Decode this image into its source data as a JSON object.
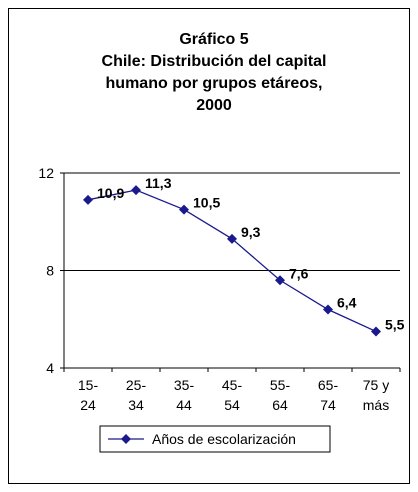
{
  "chart_data": {
    "type": "line",
    "title_lines": [
      "Gráfico 5",
      "Chile: Distribución del capital",
      "humano por grupos etáreos,",
      "2000"
    ],
    "categories": [
      [
        "15-",
        "24"
      ],
      [
        "25-",
        "34"
      ],
      [
        "35-",
        "44"
      ],
      [
        "45-",
        "54"
      ],
      [
        "55-",
        "64"
      ],
      [
        "65-",
        "74"
      ],
      [
        "75 y",
        "más"
      ]
    ],
    "series": [
      {
        "name": "Años de escolarización",
        "values": [
          10.9,
          11.3,
          10.5,
          9.3,
          7.6,
          6.4,
          5.5
        ],
        "labels": [
          "10,9",
          "11,3",
          "10,5",
          "9,3",
          "7,6",
          "6,4",
          "5,5"
        ],
        "color": "#1a1a8c"
      }
    ],
    "ylim": [
      4,
      12
    ],
    "yticks": [
      4,
      8,
      12
    ],
    "ytick_labels": [
      "4",
      "8",
      "12"
    ],
    "grid": "horizontal",
    "legend_position": "bottom",
    "xlabel": "",
    "ylabel": ""
  }
}
